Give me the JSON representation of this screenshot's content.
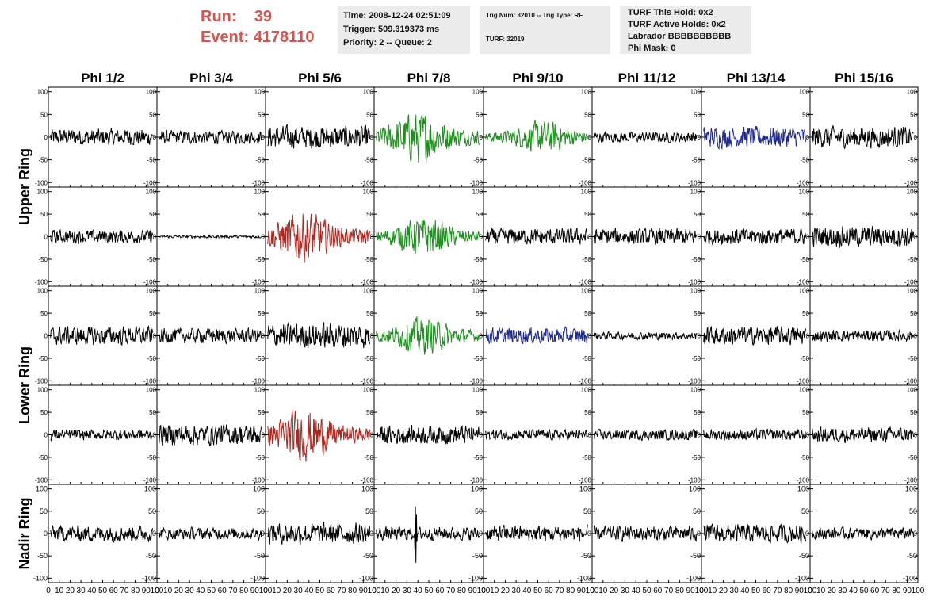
{
  "header": {
    "run_label": "Run:",
    "run_value": "39",
    "event_label": "Event:",
    "event_value": "4178110",
    "info1": [
      "Time: 2008-12-24 02:51:09",
      "Trigger: 509.319373 ms",
      "Priority: 2 -- Queue: 2"
    ],
    "info2": [
      "Trig Num: 32010 -- Trig Type: RF",
      "TURF: 32019"
    ],
    "info3": [
      "TURF This Hold: 0x2",
      "TURF Active Holds: 0x2",
      "Labrador BBBBBBBBBB",
      "Phi Mask: 0"
    ]
  },
  "chart_data": {
    "type": "line",
    "columns": [
      "Phi 1/2",
      "Phi 3/4",
      "Phi 5/6",
      "Phi 7/8",
      "Phi 9/10",
      "Phi 11/12",
      "Phi 13/14",
      "Phi 15/16"
    ],
    "rings": [
      "Upper Ring",
      "Lower Ring",
      "Nadir Ring"
    ],
    "rows": 5,
    "row_ring_groups": [
      [
        0,
        1
      ],
      [
        2,
        3
      ],
      [
        4
      ]
    ],
    "xlim": [
      0,
      100
    ],
    "ylim": [
      -110,
      110
    ],
    "x_ticks": [
      "0",
      "10",
      "20",
      "30",
      "40",
      "50",
      "60",
      "70",
      "80",
      "90",
      "100"
    ],
    "y_tick_labels": [
      "100",
      "50",
      "0",
      "-50",
      "-100"
    ],
    "y_tick_values": [
      100,
      50,
      0,
      -50,
      -100
    ],
    "waveform_colors": {
      "black": "#000000",
      "green": "#1f8f1f",
      "blue": "#1f2a8f",
      "red": "#b3261e"
    },
    "panels": [
      [
        {
          "color": "black",
          "amp": 22
        },
        {
          "color": "black",
          "amp": 18
        },
        {
          "color": "black",
          "amp": 30
        },
        {
          "color": "green",
          "amp": 55,
          "peak": 40
        },
        {
          "color": "green",
          "amp": 35,
          "peak": 55
        },
        {
          "color": "black",
          "amp": 14
        },
        {
          "color": "blue",
          "amp": 28
        },
        {
          "color": "black",
          "amp": 28
        }
      ],
      [
        {
          "color": "black",
          "amp": 18
        },
        {
          "color": "black",
          "amp": 4
        },
        {
          "color": "red",
          "amp": 55,
          "peak": 35
        },
        {
          "color": "green",
          "amp": 42,
          "peak": 45
        },
        {
          "color": "black",
          "amp": 22
        },
        {
          "color": "black",
          "amp": 22
        },
        {
          "color": "black",
          "amp": 22
        },
        {
          "color": "black",
          "amp": 28
        }
      ],
      [
        {
          "color": "black",
          "amp": 25
        },
        {
          "color": "black",
          "amp": 20
        },
        {
          "color": "black",
          "amp": 35
        },
        {
          "color": "green",
          "amp": 40,
          "peak": 45
        },
        {
          "color": "blue",
          "amp": 22
        },
        {
          "color": "black",
          "amp": 10
        },
        {
          "color": "black",
          "amp": 25
        },
        {
          "color": "black",
          "amp": 15
        }
      ],
      [
        {
          "color": "black",
          "amp": 14
        },
        {
          "color": "black",
          "amp": 28
        },
        {
          "color": "red",
          "amp": 55,
          "peak": 35
        },
        {
          "color": "black",
          "amp": 25
        },
        {
          "color": "black",
          "amp": 14
        },
        {
          "color": "black",
          "amp": 14
        },
        {
          "color": "black",
          "amp": 15
        },
        {
          "color": "black",
          "amp": 20
        }
      ],
      [
        {
          "color": "black",
          "amp": 22
        },
        {
          "color": "black",
          "amp": 16
        },
        {
          "color": "black",
          "amp": 28
        },
        {
          "color": "black",
          "amp": 18,
          "spike": 75,
          "peak": 38
        },
        {
          "color": "black",
          "amp": 22
        },
        {
          "color": "black",
          "amp": 20
        },
        {
          "color": "black",
          "amp": 25
        },
        {
          "color": "black",
          "amp": 16
        }
      ]
    ]
  }
}
